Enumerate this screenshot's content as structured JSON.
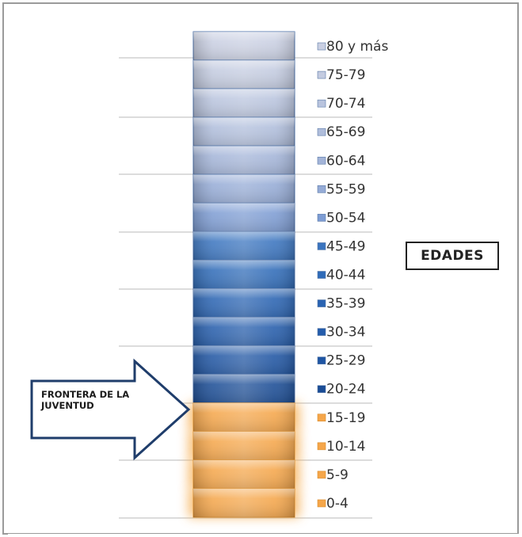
{
  "chart_data": {
    "type": "bar",
    "orientation": "stacked-column",
    "categories": [
      "80 y más",
      "75-79",
      "70-74",
      "65-69",
      "60-64",
      "55-59",
      "50-54",
      "45-49",
      "40-44",
      "35-39",
      "30-34",
      "25-29",
      "20-24",
      "15-19",
      "10-14",
      "5-9",
      "0-4"
    ],
    "values": [
      1,
      1,
      1,
      1,
      1,
      1,
      1,
      1,
      1,
      1,
      1,
      1,
      1,
      1,
      1,
      1,
      1
    ],
    "colors": [
      "#c9cfe2",
      "#c3cbe0",
      "#b9c4de",
      "#afbddb",
      "#a3b4d8",
      "#95abd6",
      "#7d9cd3",
      "#3a74bf",
      "#2f6bb8",
      "#2963b2",
      "#245cab",
      "#1f55a3",
      "#1a4c95",
      "#f5a64a",
      "#f5a64a",
      "#f5a64a",
      "#f5a64a"
    ],
    "legend_title": "EDADES",
    "legend_placement": "right",
    "annotation": "FRONTERA DE LA JUVENTUD"
  }
}
